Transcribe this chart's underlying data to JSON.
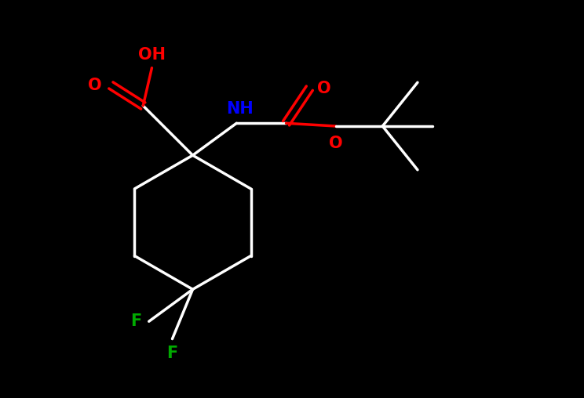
{
  "background_color": "#000000",
  "atom_colors": {
    "C": "#ffffff",
    "O": "#ff0000",
    "N": "#0000ff",
    "F": "#00aa00",
    "H": "#ffffff"
  },
  "bond_color": "#ffffff",
  "bond_width": 2.5,
  "figsize": [
    7.44,
    5.08
  ],
  "dpi": 100
}
